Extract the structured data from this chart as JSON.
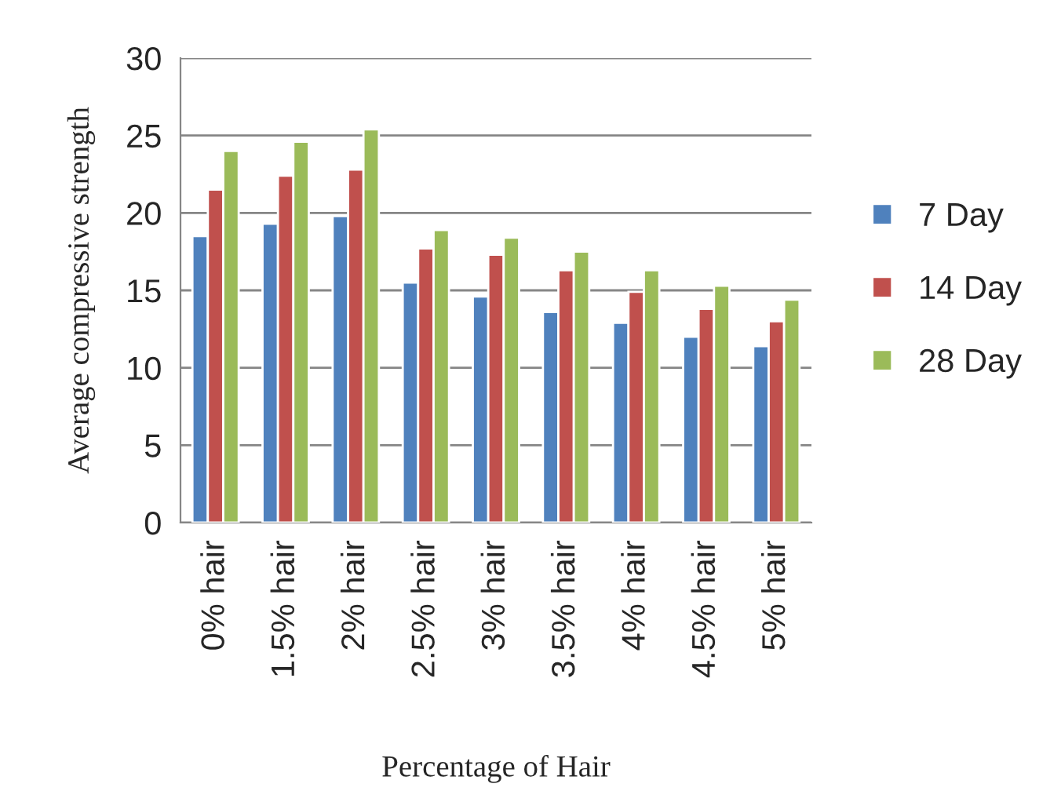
{
  "chart_data": {
    "type": "bar",
    "xlabel": "Percentage of Hair",
    "ylabel": "Average compressive strength",
    "categories": [
      "0% hair",
      "1.5% hair",
      "2% hair",
      "2.5% hair",
      "3% hair",
      "3.5% hair",
      "4% hair",
      "4.5% hair",
      "5% hair"
    ],
    "series": [
      {
        "name": "7 Day",
        "color": "#4f81bd",
        "values": [
          18.5,
          19.3,
          19.8,
          15.5,
          14.6,
          13.6,
          12.9,
          12.0,
          11.4
        ]
      },
      {
        "name": "14 Day",
        "color": "#c0504d",
        "values": [
          21.5,
          22.4,
          22.8,
          17.7,
          17.3,
          16.3,
          14.9,
          13.8,
          13.0
        ]
      },
      {
        "name": "28 Day",
        "color": "#9bbb59",
        "values": [
          24.0,
          24.6,
          25.4,
          18.9,
          18.4,
          17.5,
          16.3,
          15.3,
          14.4
        ]
      }
    ],
    "ylim": [
      0,
      30
    ],
    "yticks": [
      0,
      5,
      10,
      15,
      20,
      25,
      30
    ],
    "grid": "y",
    "legend": "right"
  }
}
